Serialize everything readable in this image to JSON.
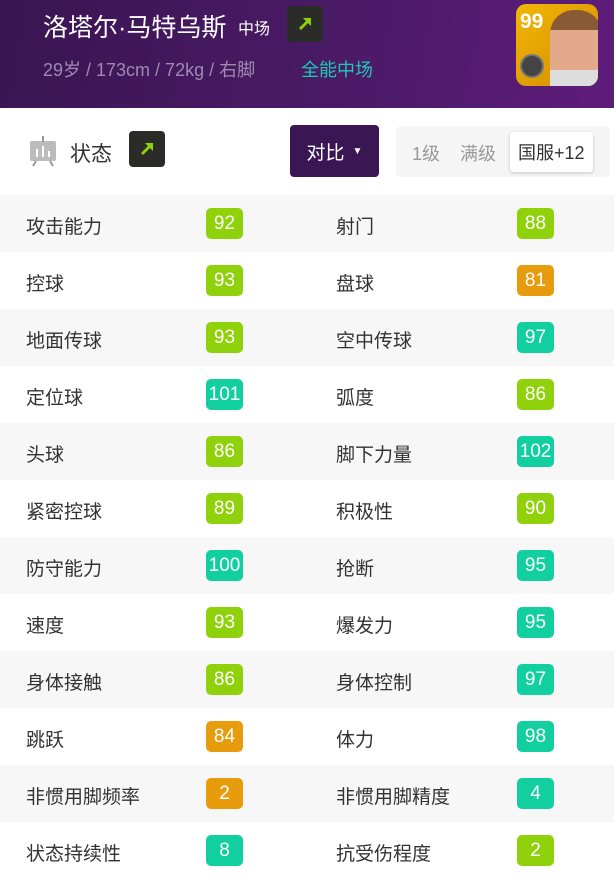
{
  "player": {
    "name": "洛塔尔·马特乌斯",
    "position": "中场",
    "meta": "29岁 / 173cm / 72kg / 右脚",
    "role": "全能中场",
    "overall": "99"
  },
  "toolbar": {
    "status_label": "状态",
    "compare_label": "对比",
    "levels": [
      "1级",
      "满级",
      "国服+12"
    ]
  },
  "colors": {
    "green": "#8fd10a",
    "orange": "#e69c0c",
    "teal": "#12cf9f",
    "header": "#3a1552"
  },
  "stats": [
    [
      {
        "label": "攻击能力",
        "value": "92",
        "color": "green"
      },
      {
        "label": "射门",
        "value": "88",
        "color": "green"
      }
    ],
    [
      {
        "label": "控球",
        "value": "93",
        "color": "green"
      },
      {
        "label": "盘球",
        "value": "81",
        "color": "orange"
      }
    ],
    [
      {
        "label": "地面传球",
        "value": "93",
        "color": "green"
      },
      {
        "label": "空中传球",
        "value": "97",
        "color": "teal"
      }
    ],
    [
      {
        "label": "定位球",
        "value": "101",
        "color": "teal"
      },
      {
        "label": "弧度",
        "value": "86",
        "color": "green"
      }
    ],
    [
      {
        "label": "头球",
        "value": "86",
        "color": "green"
      },
      {
        "label": "脚下力量",
        "value": "102",
        "color": "teal"
      }
    ],
    [
      {
        "label": "紧密控球",
        "value": "89",
        "color": "green"
      },
      {
        "label": "积极性",
        "value": "90",
        "color": "green"
      }
    ],
    [
      {
        "label": "防守能力",
        "value": "100",
        "color": "teal"
      },
      {
        "label": "抢断",
        "value": "95",
        "color": "teal"
      }
    ],
    [
      {
        "label": "速度",
        "value": "93",
        "color": "green"
      },
      {
        "label": "爆发力",
        "value": "95",
        "color": "teal"
      }
    ],
    [
      {
        "label": "身体接触",
        "value": "86",
        "color": "green"
      },
      {
        "label": "身体控制",
        "value": "97",
        "color": "teal"
      }
    ],
    [
      {
        "label": "跳跃",
        "value": "84",
        "color": "orange"
      },
      {
        "label": "体力",
        "value": "98",
        "color": "teal"
      }
    ],
    [
      {
        "label": "非惯用脚频率",
        "value": "2",
        "color": "orange"
      },
      {
        "label": "非惯用脚精度",
        "value": "4",
        "color": "teal"
      }
    ],
    [
      {
        "label": "状态持续性",
        "value": "8",
        "color": "teal"
      },
      {
        "label": "抗受伤程度",
        "value": "2",
        "color": "green"
      }
    ]
  ]
}
